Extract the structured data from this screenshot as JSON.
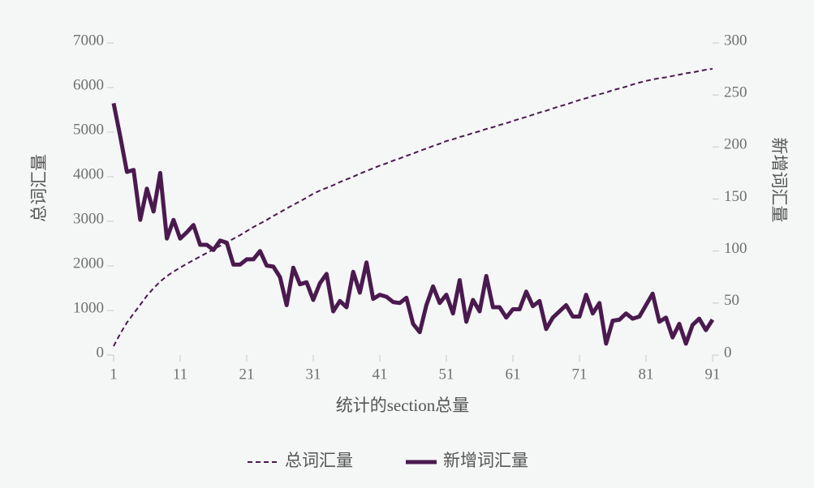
{
  "chart_data": {
    "type": "line",
    "x_label": "统计的section总量",
    "y_label": "总词汇量",
    "y2_label": "新增词汇量",
    "x": [
      1,
      2,
      3,
      4,
      5,
      6,
      7,
      8,
      9,
      10,
      11,
      12,
      13,
      14,
      15,
      16,
      17,
      18,
      19,
      20,
      21,
      22,
      23,
      24,
      25,
      26,
      27,
      28,
      29,
      30,
      31,
      32,
      33,
      34,
      35,
      36,
      37,
      38,
      39,
      40,
      41,
      42,
      43,
      44,
      45,
      46,
      47,
      48,
      49,
      50,
      51,
      52,
      53,
      54,
      55,
      56,
      57,
      58,
      59,
      60,
      61,
      62,
      63,
      64,
      65,
      66,
      67,
      68,
      69,
      70,
      71,
      72,
      73,
      74,
      75,
      76,
      77,
      78,
      79,
      80,
      81,
      82,
      83,
      84,
      85,
      86,
      87,
      88,
      89,
      90,
      91
    ],
    "series": [
      {
        "name": "总词汇量",
        "color": "#4a1a4f",
        "dash": "dashed",
        "values": [
          200,
          480,
          730,
          930,
          1130,
          1330,
          1500,
          1650,
          1770,
          1870,
          1960,
          2050,
          2130,
          2210,
          2290,
          2370,
          2450,
          2530,
          2610,
          2690,
          2780,
          2870,
          2950,
          3030,
          3120,
          3200,
          3290,
          3370,
          3450,
          3530,
          3620,
          3690,
          3750,
          3810,
          3880,
          3940,
          4000,
          4070,
          4130,
          4190,
          4250,
          4300,
          4360,
          4410,
          4470,
          4520,
          4580,
          4630,
          4690,
          4740,
          4800,
          4840,
          4890,
          4930,
          4980,
          5020,
          5070,
          5110,
          5160,
          5200,
          5250,
          5300,
          5340,
          5390,
          5440,
          5480,
          5530,
          5580,
          5620,
          5670,
          5720,
          5760,
          5810,
          5850,
          5890,
          5940,
          5980,
          6020,
          6070,
          6110,
          6150,
          6180,
          6210,
          6230,
          6260,
          6290,
          6320,
          6340,
          6370,
          6400,
          6420
        ]
      },
      {
        "name": "新增词汇量",
        "color": "#4a1a4f",
        "dash": "solid",
        "axis": "y2",
        "values": [
          242,
          210,
          176,
          178,
          130,
          160,
          138,
          175,
          112,
          130,
          112,
          118,
          125,
          106,
          106,
          101,
          110,
          108,
          87,
          87,
          92,
          92,
          100,
          86,
          85,
          75,
          48,
          84,
          68,
          70,
          53,
          69,
          78,
          42,
          52,
          46,
          80,
          60,
          89,
          54,
          58,
          56,
          51,
          50,
          55,
          30,
          22,
          48,
          66,
          50,
          58,
          40,
          72,
          32,
          53,
          42,
          76,
          46,
          46,
          36,
          44,
          44,
          61,
          47,
          52,
          25,
          36,
          42,
          48,
          37,
          37,
          58,
          40,
          50,
          11,
          33,
          34,
          40,
          35,
          37,
          48,
          59,
          32,
          36,
          17,
          30,
          11,
          29,
          35,
          24,
          34
        ]
      }
    ],
    "xlim": [
      1,
      91
    ],
    "xticks": [
      1,
      11,
      21,
      31,
      41,
      51,
      61,
      71,
      81,
      91
    ],
    "ylim": [
      0,
      7000
    ],
    "yticks": [
      0,
      1000,
      2000,
      3000,
      4000,
      5000,
      6000,
      7000
    ],
    "y2lim": [
      0,
      300
    ],
    "y2ticks": [
      0,
      50,
      100,
      150,
      200,
      250,
      300
    ],
    "grid": false,
    "legend": "bottom"
  }
}
